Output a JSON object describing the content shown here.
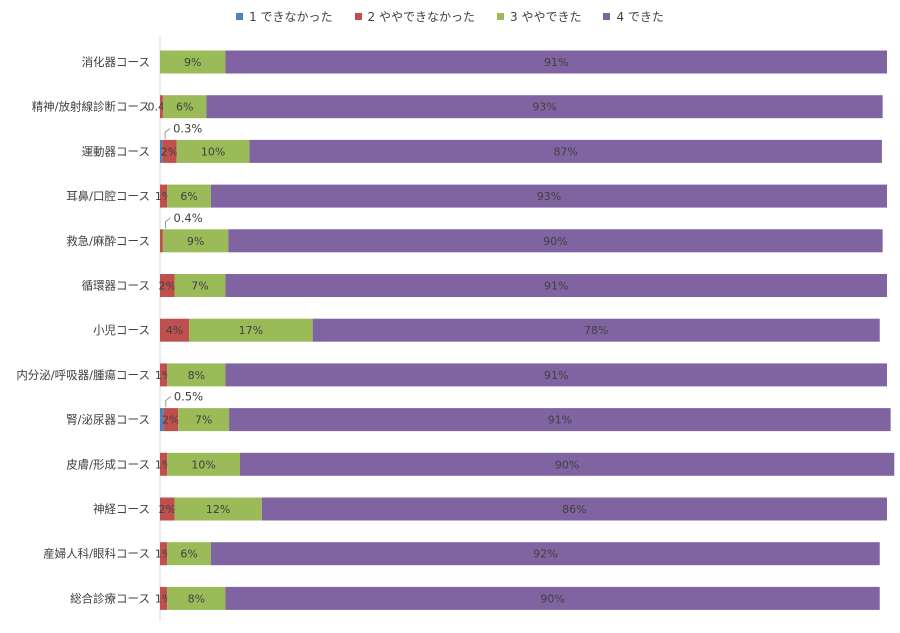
{
  "chart_data": {
    "type": "bar",
    "orientation": "horizontal",
    "stacked": "100%",
    "legend_position": "top",
    "grid": false,
    "xlim": [
      0,
      100
    ],
    "categories": [
      "消化器コース",
      "精神/放射線診断コース",
      "運動器コース",
      "耳鼻/口腔コース",
      "救急/麻酔コース",
      "循環器コース",
      "小児コース",
      "内分泌/呼吸器/腫瘍コース",
      "腎/泌尿器コース",
      "皮膚/形成コース",
      "神経コース",
      "産婦人科/眼科コース",
      "総合診療コース"
    ],
    "series": [
      {
        "name": "1 できなかった",
        "color": "#4f81bd",
        "values": [
          0,
          0,
          0.3,
          0,
          0,
          0,
          0,
          0,
          0.5,
          0,
          0,
          0,
          0
        ],
        "labels": [
          "",
          "",
          "0.3%",
          "",
          "",
          "",
          "",
          "",
          "0.5%",
          "",
          "",
          "",
          ""
        ]
      },
      {
        "name": "2 ややできなかった",
        "color": "#c0504d",
        "values": [
          0,
          0.4,
          2,
          1,
          0.4,
          2,
          4,
          1,
          2,
          1,
          2,
          1,
          1
        ],
        "labels": [
          "",
          "0.4%",
          "2%",
          "1%",
          "0.4%",
          "2%",
          "4%",
          "1%",
          "2%",
          "1%",
          "2%",
          "1%",
          "1%"
        ]
      },
      {
        "name": "3 ややできた",
        "color": "#9bbb59",
        "values": [
          9,
          6,
          10,
          6,
          9,
          7,
          17,
          8,
          7,
          10,
          12,
          6,
          8
        ],
        "labels": [
          "9%",
          "6%",
          "10%",
          "6%",
          "9%",
          "7%",
          "17%",
          "8%",
          "7%",
          "10%",
          "12%",
          "6%",
          "8%"
        ]
      },
      {
        "name": "4 できた",
        "color": "#8064a2",
        "values": [
          91,
          93,
          87,
          93,
          90,
          91,
          78,
          91,
          91,
          90,
          86,
          92,
          90
        ],
        "labels": [
          "91%",
          "93%",
          "87%",
          "93%",
          "90%",
          "91%",
          "78%",
          "91%",
          "91%",
          "90%",
          "86%",
          "92%",
          "90%"
        ]
      }
    ],
    "callouts": [
      {
        "category_index": 2,
        "series_index": 0,
        "text": "0.3%"
      },
      {
        "category_index": 4,
        "series_index": 1,
        "text": "0.4%"
      },
      {
        "category_index": 8,
        "series_index": 0,
        "text": "0.5%"
      }
    ]
  }
}
